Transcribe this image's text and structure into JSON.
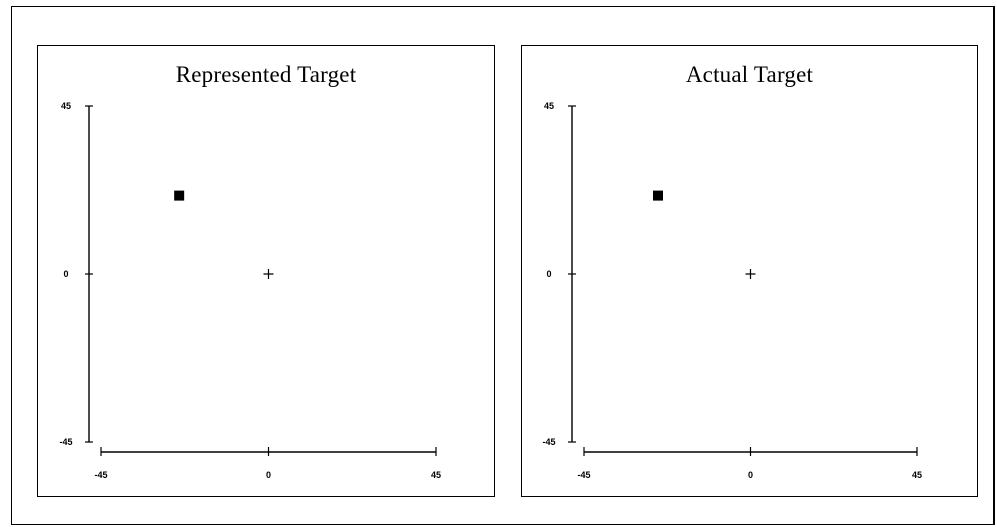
{
  "chart_data": [
    {
      "type": "scatter",
      "title": "Represented Target",
      "xlim": [
        -45,
        45
      ],
      "ylim": [
        -45,
        45
      ],
      "x_ticks": [
        "-45",
        "0",
        "45"
      ],
      "y_ticks": [
        "45",
        "0",
        "-45"
      ],
      "origin_marker": {
        "x": 0,
        "y": 0,
        "symbol": "+"
      },
      "points": [
        {
          "x": -24,
          "y": 21,
          "symbol": "square"
        }
      ],
      "grid": false
    },
    {
      "type": "scatter",
      "title": "Actual Target",
      "xlim": [
        -45,
        45
      ],
      "ylim": [
        -45,
        45
      ],
      "x_ticks": [
        "-45",
        "0",
        "45"
      ],
      "y_ticks": [
        "45",
        "0",
        "-45"
      ],
      "origin_marker": {
        "x": 0,
        "y": 0,
        "symbol": "+"
      },
      "points": [
        {
          "x": -25,
          "y": 21,
          "symbol": "square"
        }
      ],
      "grid": false
    }
  ]
}
